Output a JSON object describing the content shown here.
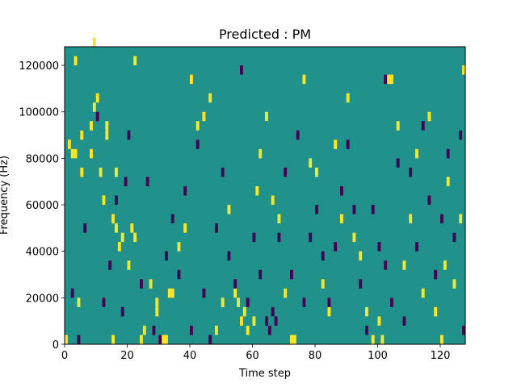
{
  "chart_data": {
    "type": "heatmap",
    "title": "Predicted : PM",
    "xlabel": "Time step",
    "ylabel": "Frequency (Hz)",
    "xlim": [
      0,
      128
    ],
    "ylim": [
      0,
      128000
    ],
    "x_ticks": [
      0,
      20,
      40,
      60,
      80,
      100,
      120
    ],
    "y_ticks": [
      0,
      20000,
      40000,
      60000,
      80000,
      100000,
      120000
    ],
    "x_tick_labels": [
      "0",
      "20",
      "40",
      "60",
      "80",
      "100",
      "120"
    ],
    "y_tick_labels": [
      "0",
      "20000",
      "40000",
      "60000",
      "80000",
      "100000",
      "120000"
    ],
    "colormap": "viridis",
    "colors": {
      "background": "#21918c",
      "low": "#440154",
      "high": "#fde725"
    },
    "value_encoding": "background = 0, low = -1, high = 1",
    "bin_height_hz": 4000,
    "cells_high": [
      [
        0,
        0
      ],
      [
        1,
        21
      ],
      [
        2,
        20
      ],
      [
        3,
        20
      ],
      [
        3,
        30
      ],
      [
        4,
        4
      ],
      [
        5,
        18
      ],
      [
        5,
        22
      ],
      [
        8,
        23
      ],
      [
        8,
        20
      ],
      [
        9,
        32
      ],
      [
        9,
        25
      ],
      [
        10,
        26
      ],
      [
        11,
        18
      ],
      [
        12,
        15
      ],
      [
        13,
        22
      ],
      [
        13,
        23
      ],
      [
        15,
        0
      ],
      [
        15,
        13
      ],
      [
        16,
        18
      ],
      [
        16,
        12
      ],
      [
        17,
        10
      ],
      [
        18,
        11
      ],
      [
        20,
        8
      ],
      [
        21,
        12
      ],
      [
        22,
        11
      ],
      [
        22,
        30
      ],
      [
        24,
        0
      ],
      [
        25,
        1
      ],
      [
        27,
        6
      ],
      [
        29,
        3
      ],
      [
        29,
        4
      ],
      [
        30,
        0
      ],
      [
        31,
        0
      ],
      [
        32,
        0
      ],
      [
        33,
        5
      ],
      [
        34,
        5
      ],
      [
        36,
        10
      ],
      [
        38,
        12
      ],
      [
        40,
        28
      ],
      [
        42,
        23
      ],
      [
        44,
        24
      ],
      [
        46,
        26
      ],
      [
        48,
        1
      ],
      [
        50,
        4
      ],
      [
        52,
        14
      ],
      [
        54,
        5
      ],
      [
        55,
        4
      ],
      [
        56,
        2
      ],
      [
        57,
        3
      ],
      [
        58,
        1
      ],
      [
        60,
        2
      ],
      [
        61,
        16
      ],
      [
        62,
        20
      ],
      [
        64,
        24
      ],
      [
        66,
        15
      ],
      [
        68,
        13
      ],
      [
        70,
        5
      ],
      [
        72,
        0
      ],
      [
        73,
        0
      ],
      [
        76,
        28
      ],
      [
        78,
        19
      ],
      [
        80,
        18
      ],
      [
        82,
        6
      ],
      [
        84,
        3
      ],
      [
        86,
        21
      ],
      [
        88,
        13
      ],
      [
        90,
        26
      ],
      [
        92,
        11
      ],
      [
        94,
        9
      ],
      [
        96,
        3
      ],
      [
        98,
        0
      ],
      [
        100,
        2
      ],
      [
        101,
        0
      ],
      [
        103,
        28
      ],
      [
        104,
        28
      ],
      [
        106,
        23
      ],
      [
        108,
        8
      ],
      [
        110,
        13
      ],
      [
        112,
        20
      ],
      [
        114,
        5
      ],
      [
        116,
        24
      ],
      [
        118,
        3
      ],
      [
        120,
        0
      ],
      [
        121,
        8
      ],
      [
        122,
        17
      ],
      [
        124,
        6
      ],
      [
        126,
        13
      ],
      [
        127,
        29
      ]
    ],
    "cells_low": [
      [
        2,
        5
      ],
      [
        4,
        0
      ],
      [
        6,
        12
      ],
      [
        10,
        24
      ],
      [
        12,
        4
      ],
      [
        14,
        8
      ],
      [
        16,
        15
      ],
      [
        18,
        3
      ],
      [
        19,
        17
      ],
      [
        20,
        22
      ],
      [
        24,
        6
      ],
      [
        26,
        17
      ],
      [
        28,
        1
      ],
      [
        30,
        0
      ],
      [
        32,
        9
      ],
      [
        34,
        13
      ],
      [
        36,
        7
      ],
      [
        38,
        16
      ],
      [
        40,
        1
      ],
      [
        42,
        21
      ],
      [
        44,
        5
      ],
      [
        46,
        0
      ],
      [
        48,
        12
      ],
      [
        50,
        18
      ],
      [
        52,
        9
      ],
      [
        54,
        6
      ],
      [
        56,
        29
      ],
      [
        58,
        4
      ],
      [
        60,
        11
      ],
      [
        62,
        7
      ],
      [
        64,
        2
      ],
      [
        65,
        1
      ],
      [
        66,
        3
      ],
      [
        67,
        2
      ],
      [
        68,
        11
      ],
      [
        70,
        18
      ],
      [
        72,
        7
      ],
      [
        74,
        22
      ],
      [
        76,
        4
      ],
      [
        78,
        11
      ],
      [
        80,
        14
      ],
      [
        82,
        9
      ],
      [
        84,
        4
      ],
      [
        86,
        10
      ],
      [
        88,
        16
      ],
      [
        90,
        21
      ],
      [
        92,
        14
      ],
      [
        94,
        6
      ],
      [
        96,
        1
      ],
      [
        98,
        14
      ],
      [
        100,
        10
      ],
      [
        102,
        28
      ],
      [
        102,
        8
      ],
      [
        104,
        4
      ],
      [
        106,
        19
      ],
      [
        108,
        2
      ],
      [
        110,
        18
      ],
      [
        112,
        10
      ],
      [
        114,
        23
      ],
      [
        116,
        15
      ],
      [
        118,
        7
      ],
      [
        120,
        13
      ],
      [
        122,
        20
      ],
      [
        124,
        11
      ],
      [
        126,
        22
      ],
      [
        127,
        1
      ]
    ]
  }
}
